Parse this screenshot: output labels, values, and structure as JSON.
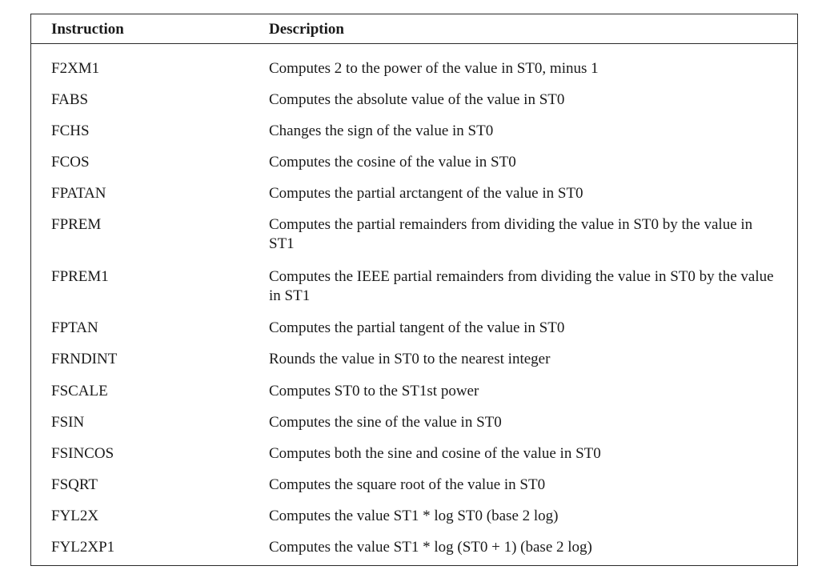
{
  "table": {
    "headers": {
      "instruction": "Instruction",
      "description": "Description"
    },
    "rows": [
      {
        "instruction": "F2XM1",
        "description": "Computes 2 to the power of the value in ST0, minus 1"
      },
      {
        "instruction": "FABS",
        "description": "Computes the absolute value of the value in ST0"
      },
      {
        "instruction": "FCHS",
        "description": "Changes the sign of the value in ST0"
      },
      {
        "instruction": "FCOS",
        "description": "Computes the cosine of the value in ST0"
      },
      {
        "instruction": "FPATAN",
        "description": "Computes the partial arctangent of the value in ST0"
      },
      {
        "instruction": "FPREM",
        "description": "Computes the partial remainders from dividing the value in ST0 by the value in ST1"
      },
      {
        "instruction": "FPREM1",
        "description": "Computes the IEEE partial remainders from dividing the value in ST0 by the value in ST1"
      },
      {
        "instruction": "FPTAN",
        "description": "Computes the partial tangent of the value in ST0"
      },
      {
        "instruction": "FRNDINT",
        "description": "Rounds the value in ST0 to the nearest integer"
      },
      {
        "instruction": "FSCALE",
        "description": "Computes ST0 to the ST1st power"
      },
      {
        "instruction": "FSIN",
        "description": "Computes the sine of the value in ST0"
      },
      {
        "instruction": "FSINCOS",
        "description": "Computes both the sine and cosine of the value in ST0"
      },
      {
        "instruction": "FSQRT",
        "description": "Computes the square root of the value in ST0"
      },
      {
        "instruction": "FYL2X",
        "description": "Computes the value ST1 * log ST0 (base 2 log)"
      },
      {
        "instruction": "FYL2XP1",
        "description": "Computes the value ST1 * log (ST0 + 1) (base 2 log)"
      }
    ]
  }
}
